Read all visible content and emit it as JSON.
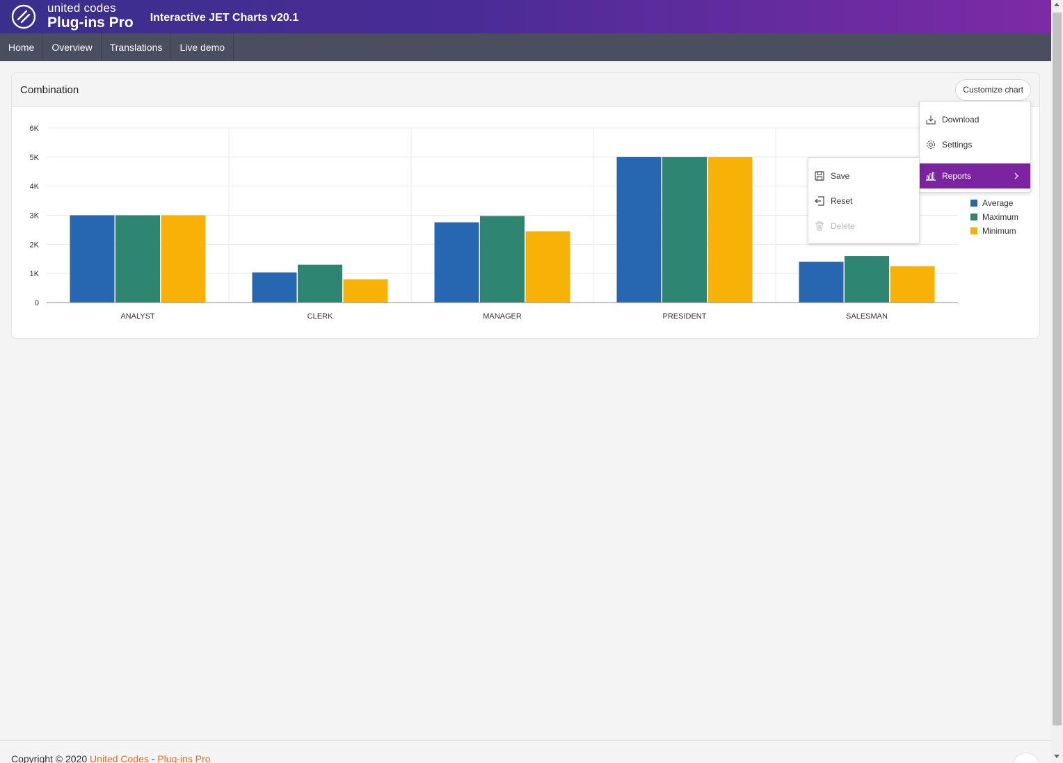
{
  "header": {
    "brand_small": "united codes",
    "brand_big": "Plug-ins Pro",
    "app_title": "Interactive JET Charts v20.1"
  },
  "nav": {
    "items": [
      {
        "label": "Home"
      },
      {
        "label": "Overview"
      },
      {
        "label": "Translations"
      },
      {
        "label": "Live demo"
      }
    ]
  },
  "card": {
    "title": "Combination",
    "customize_label": "Customize chart"
  },
  "menu": {
    "items": [
      {
        "label": "Download",
        "icon": "download-icon"
      },
      {
        "label": "Settings",
        "icon": "gear-icon"
      },
      {
        "label": "Reports",
        "icon": "bar-chart-icon",
        "active": true
      }
    ]
  },
  "submenu": {
    "items": [
      {
        "label": "Save",
        "icon": "save-icon"
      },
      {
        "label": "Reset",
        "icon": "reset-icon"
      },
      {
        "label": "Delete",
        "icon": "trash-icon",
        "disabled": true
      }
    ]
  },
  "chart_data": {
    "type": "bar",
    "categories": [
      "ANALYST",
      "CLERK",
      "MANAGER",
      "PRESIDENT",
      "SALESMAN"
    ],
    "series": [
      {
        "name": "Average",
        "color": "#2766b0",
        "values": [
          3000,
          1037,
          2758,
          5000,
          1400
        ]
      },
      {
        "name": "Maximum",
        "color": "#2e8572",
        "values": [
          3000,
          1300,
          2975,
          5000,
          1600
        ]
      },
      {
        "name": "Minimum",
        "color": "#f8b106",
        "values": [
          3000,
          800,
          2450,
          5000,
          1250
        ]
      }
    ],
    "yticks": [
      "0",
      "1K",
      "2K",
      "3K",
      "4K",
      "5K",
      "6K"
    ],
    "ylim": [
      0,
      6000
    ],
    "grid": true,
    "legend_position": "right"
  },
  "footer": {
    "prefix": "Copyright © 2020 ",
    "link1": "United Codes",
    "sep": " - ",
    "link2": "Plug-ins Pro"
  }
}
